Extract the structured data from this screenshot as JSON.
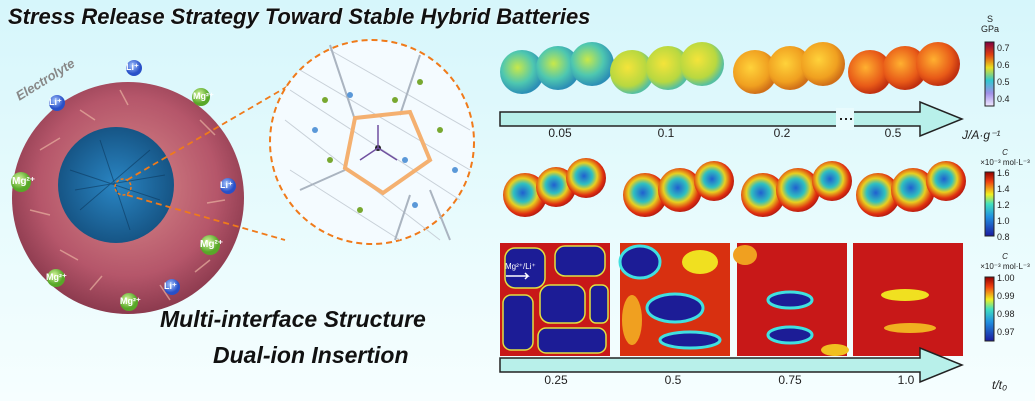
{
  "title": "Stress Release Strategy Toward Stable Hybrid Batteries",
  "left_panel": {
    "electrolyte_label": "Electrolyte",
    "ion_li": "Li⁺",
    "ion_mg": "Mg²⁺",
    "heading_1": "Multi-interface Structure",
    "heading_2": "Dual-ion Insertion"
  },
  "colors": {
    "accent_orange": "#f07a1a",
    "shell": "#b5566a",
    "core": "#1f72b0",
    "arrow_fill": "#b8f0ea"
  },
  "top_row": {
    "axis_label": "J/A·g⁻¹",
    "ticks": [
      "0.05",
      "0.1",
      "0.2",
      "0.5"
    ],
    "colorbar": {
      "title": "S",
      "unit": "GPa",
      "ticks": [
        "0.7",
        "0.6",
        "0.5",
        "0.4"
      ]
    }
  },
  "middle_row": {
    "colorbar": {
      "title": "C",
      "unit": "×10⁻³ mol·L⁻³",
      "ticks": [
        "1.6",
        "1.4",
        "1.2",
        "1.0",
        "0.8"
      ]
    }
  },
  "bottom_row": {
    "inset_label": "Mg²⁺/Li⁺",
    "axis_label": "t/t₀",
    "ticks": [
      "0.25",
      "0.5",
      "0.75",
      "1.0"
    ],
    "colorbar": {
      "title": "C",
      "unit": "×10⁻³ mol·L⁻³",
      "ticks": [
        "1.00",
        "0.99",
        "0.98",
        "0.97"
      ]
    }
  }
}
